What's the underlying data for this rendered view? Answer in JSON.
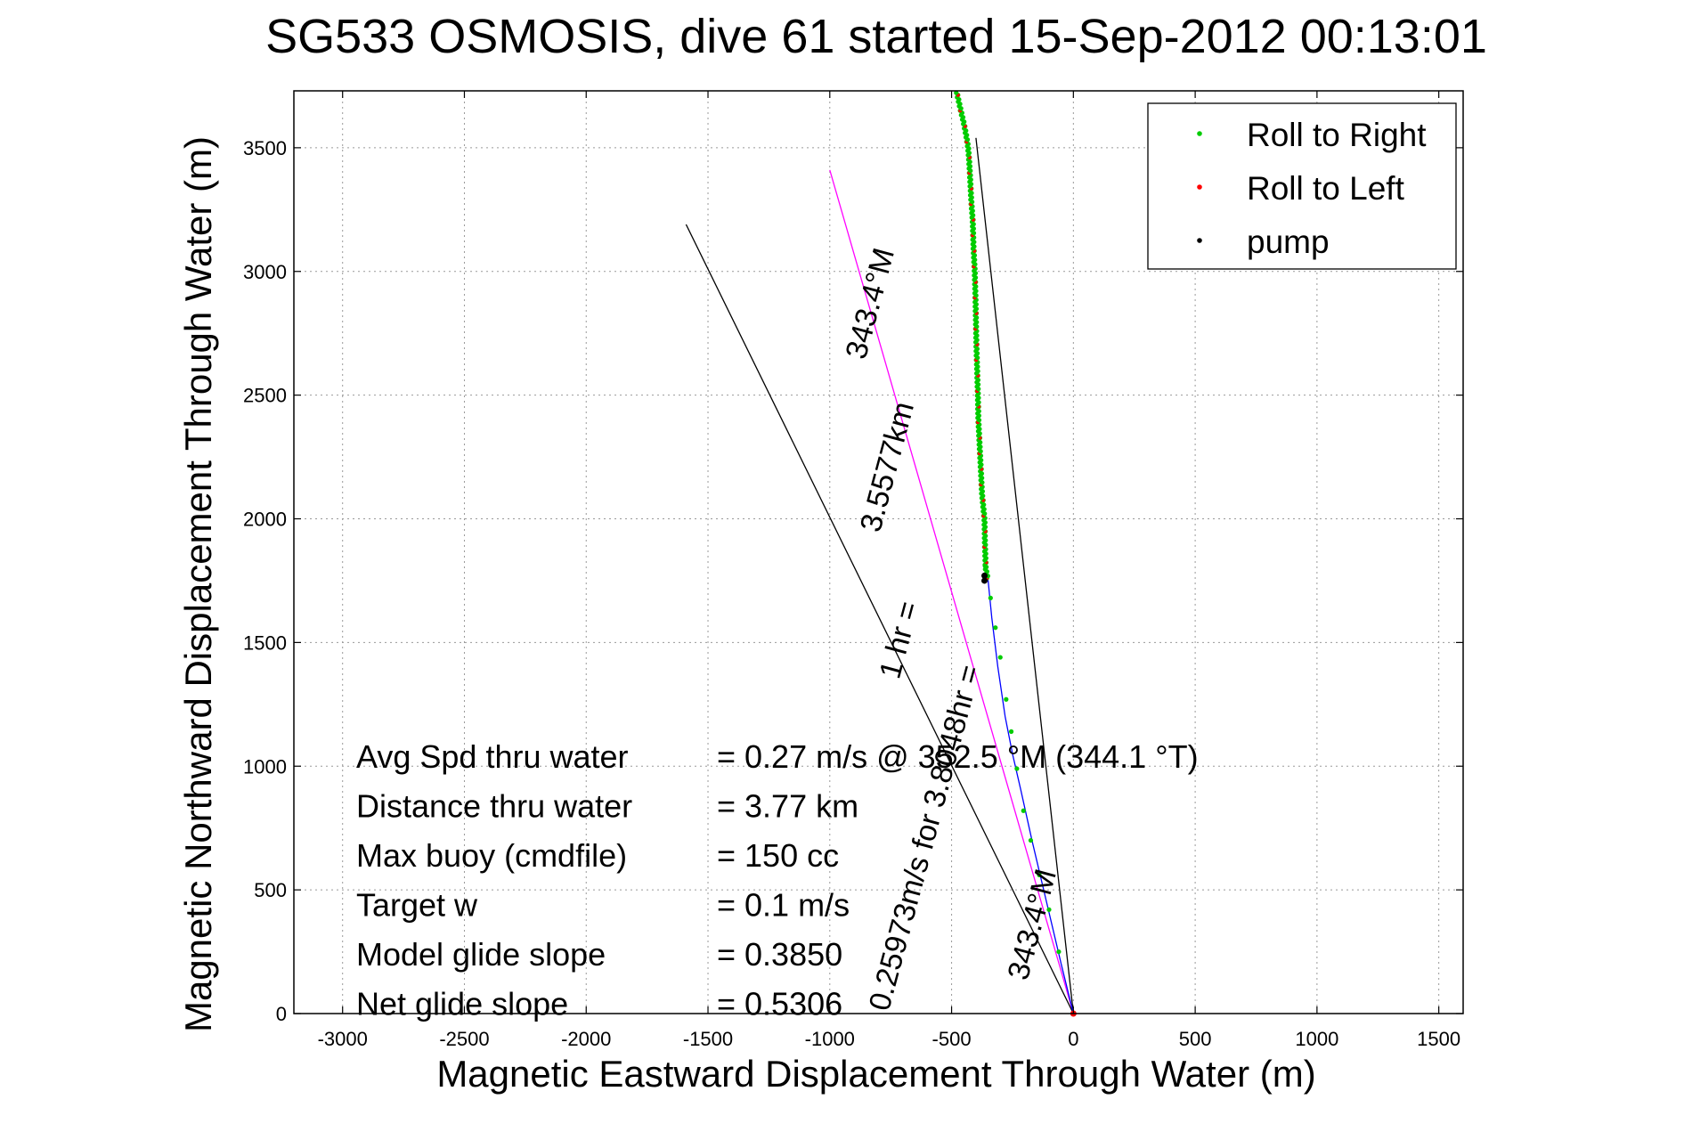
{
  "chart_data": {
    "type": "line",
    "title": "SG533 OSMOSIS, dive 61 started 15-Sep-2012 00:13:01",
    "xlabel": "Magnetic Eastward Displacement Through Water (m)",
    "ylabel": "Magnetic Northward Displacement Through Water (m)",
    "xlim": [
      -3200,
      1600
    ],
    "ylim": [
      0,
      3730
    ],
    "xticks": [
      -3000,
      -2500,
      -2000,
      -1500,
      -1000,
      -500,
      0,
      500,
      1000,
      1500
    ],
    "yticks": [
      0,
      500,
      1000,
      1500,
      2000,
      2500,
      3000,
      3500
    ],
    "grid": true,
    "legend_position": "top-right",
    "legend": [
      {
        "label": "Roll to Right",
        "color": "#00cc00"
      },
      {
        "label": "Roll to Left",
        "color": "#ff0000"
      },
      {
        "label": "pump",
        "color": "#000000"
      }
    ],
    "track": {
      "color": "#0000ff",
      "x": [
        0,
        -50,
        -110,
        -170,
        -215,
        -250,
        -280,
        -310,
        -335,
        -350,
        -360,
        -363,
        -365,
        -370,
        -375,
        -380,
        -385,
        -390,
        -392,
        -395,
        -398,
        -400,
        -402,
        -405,
        -410,
        -413,
        -420,
        -425,
        -428,
        -432,
        -440,
        -450,
        -462,
        -478
      ],
      "y": [
        0,
        200,
        450,
        700,
        900,
        1050,
        1200,
        1400,
        1600,
        1750,
        1800,
        1900,
        2000,
        2050,
        2100,
        2200,
        2300,
        2400,
        2500,
        2600,
        2700,
        2800,
        2900,
        3000,
        3100,
        3200,
        3300,
        3400,
        3450,
        3500,
        3550,
        3600,
        3650,
        3720
      ]
    },
    "dense_marker_range_y": [
      1760,
      3730
    ],
    "sparse_markers": {
      "x": [
        -363,
        -340,
        -320,
        -300,
        -276,
        -255,
        -232,
        -205,
        -175,
        -140,
        -100,
        -60
      ],
      "y": [
        1810,
        1680,
        1560,
        1440,
        1270,
        1140,
        990,
        820,
        700,
        560,
        420,
        250
      ]
    },
    "lines": [
      {
        "name": "heading-343.4-long",
        "color": "#ff00ff",
        "x": [
          0,
          -1000
        ],
        "y": [
          0,
          3410
        ]
      },
      {
        "name": "heading-343.4-short",
        "color": "#000000",
        "x": [
          0,
          -400
        ],
        "y": [
          0,
          3540
        ]
      },
      {
        "name": "glide-slope",
        "color": "#000000",
        "x": [
          0,
          -1590
        ],
        "y": [
          0,
          3190
        ]
      }
    ],
    "annotations": [
      {
        "text": "343.4°M",
        "x": -795,
        "y": 2860,
        "rotation": -75
      },
      {
        "text": "3.5577km",
        "x": -725,
        "y": 2200,
        "rotation": -75
      },
      {
        "text": "1 hr =",
        "x": -675,
        "y": 1500,
        "rotation": -75
      },
      {
        "text": "0.25973m/s for 3.8048hr =",
        "x": -570,
        "y": 700,
        "rotation": -75
      },
      {
        "text": "343.4°M",
        "x": -130,
        "y": 350,
        "rotation": -75
      }
    ],
    "stats": [
      {
        "label": "Avg Spd thru water",
        "value": "=  0.27 m/s @ 352.5 °M (344.1 °T)"
      },
      {
        "label": "Distance thru water",
        "value": "=  3.77 km"
      },
      {
        "label": "Max buoy (cmdfile)",
        "value": "= 150 cc"
      },
      {
        "label": "Target w",
        "value": "= 0.1 m/s"
      },
      {
        "label": "Model glide slope",
        "value": "= 0.3850"
      },
      {
        "label": "Net glide slope",
        "value": "= 0.5306"
      }
    ]
  }
}
